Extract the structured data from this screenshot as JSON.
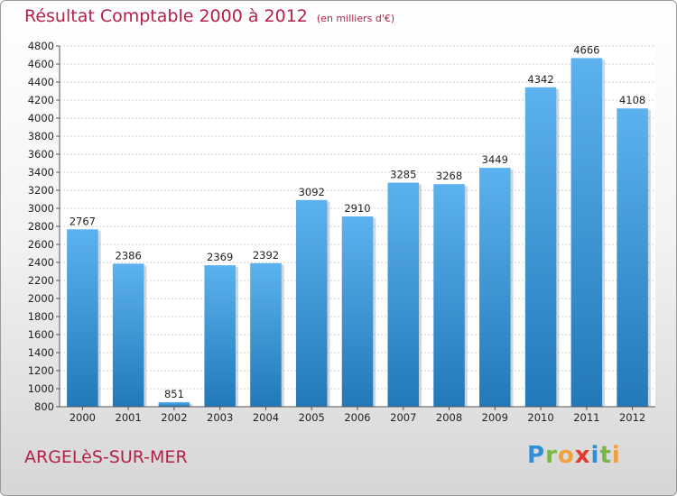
{
  "title": "Résultat Comptable 2000 à 2012",
  "subtitle": "(en milliers d'€)",
  "city": "ARGELèS-SUR-MER",
  "logo": {
    "letters": [
      {
        "ch": "P",
        "color": "#2f8fd8"
      },
      {
        "ch": "r",
        "color": "#7ab648"
      },
      {
        "ch": "o",
        "color": "#f2a23a"
      },
      {
        "ch": "x",
        "color": "#e23b2e"
      },
      {
        "ch": "i",
        "color": "#2f8fd8"
      },
      {
        "ch": "t",
        "color": "#7ab648"
      },
      {
        "ch": "i",
        "color": "#f2a23a"
      }
    ]
  },
  "chart_data": {
    "type": "bar",
    "categories": [
      "2000",
      "2001",
      "2002",
      "2003",
      "2004",
      "2005",
      "2006",
      "2007",
      "2008",
      "2009",
      "2010",
      "2011",
      "2012"
    ],
    "values": [
      2767,
      2386,
      851,
      2369,
      2392,
      3092,
      2910,
      3285,
      3268,
      3449,
      4342,
      4666,
      4108
    ],
    "title": "Résultat Comptable 2000 à 2012",
    "ylim": [
      800,
      4800
    ],
    "yticks": [
      800,
      1000,
      1200,
      1400,
      1600,
      1800,
      2000,
      2200,
      2400,
      2600,
      2800,
      3000,
      3200,
      3400,
      3600,
      3800,
      4000,
      4200,
      4400,
      4600,
      4800
    ],
    "grid": true,
    "bar_color": "#3d97d8"
  }
}
